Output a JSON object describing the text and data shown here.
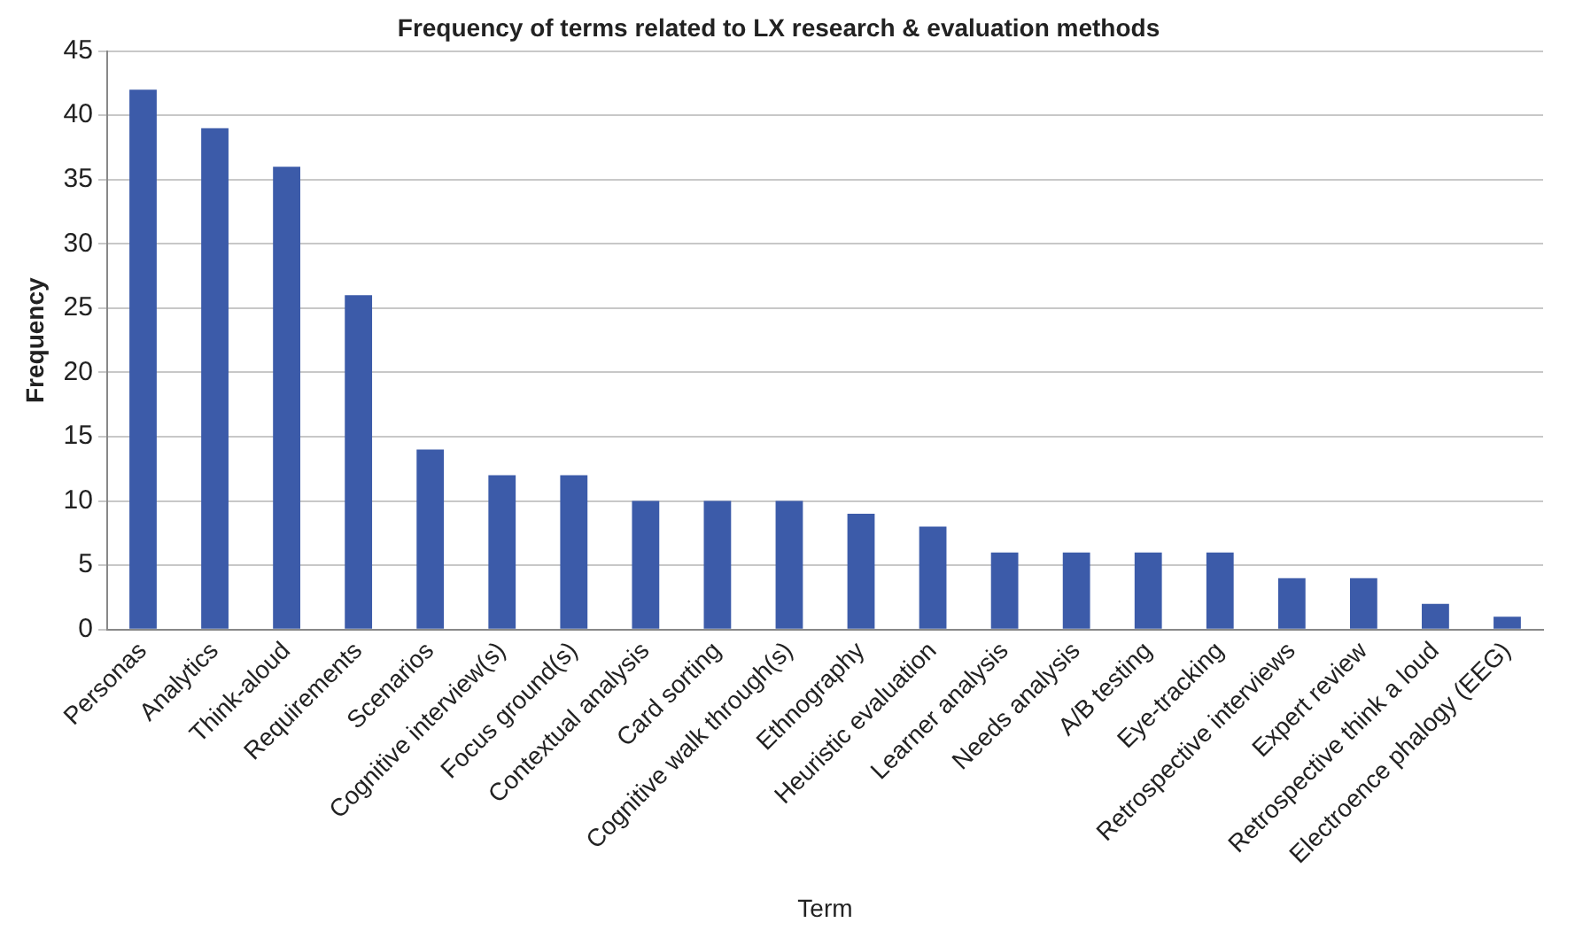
{
  "chart_data": {
    "type": "bar",
    "title": "Frequency of terms related to LX research & evaluation methods",
    "xlabel": "Term",
    "ylabel": "Frequency",
    "categories": [
      "Personas",
      "Analytics",
      "Think-aloud",
      "Requirements",
      "Scenarios",
      "Cognitive interview(s)",
      "Focus ground(s)",
      "Contextual analysis",
      "Card sorting",
      "Cognitive walk through(s)",
      "Ethnography",
      "Heuristic evaluation",
      "Learner analysis",
      "Needs analysis",
      "A/B testing",
      "Eye-tracking",
      "Retrospective interviews",
      "Expert review",
      "Retrospective think a loud",
      "Electroence phalogy (EEG)"
    ],
    "values": [
      42,
      39,
      36,
      26,
      14,
      12,
      12,
      10,
      10,
      10,
      9,
      8,
      6,
      6,
      6,
      6,
      4,
      4,
      2,
      1
    ],
    "color": "#3c5ba9",
    "ylim": [
      0,
      45
    ],
    "yticks": [
      0,
      5,
      10,
      15,
      20,
      25,
      30,
      35,
      40,
      45
    ],
    "grid": "y",
    "legend": false
  }
}
